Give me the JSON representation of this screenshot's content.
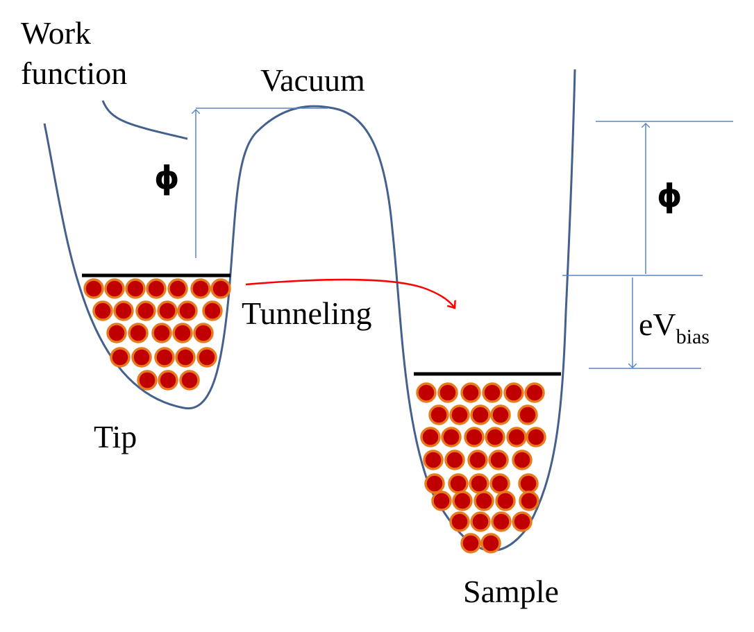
{
  "labels": {
    "work_function_line1": "Work",
    "work_function_line2": "function",
    "vacuum": "Vacuum",
    "phi_left": "ϕ",
    "phi_right": "ϕ",
    "tunneling": "Tunneling",
    "tip": "Tip",
    "sample": "Sample",
    "ev": "eV",
    "ev_sub": "bias"
  },
  "colors": {
    "well_curve": "#44608c",
    "dimension_lines": "#5a86c4",
    "fermi_level": "#000000",
    "electron_fill": "#c00000",
    "electron_stroke": "#e87a1e",
    "tunneling_arrow": "#ff0000"
  },
  "icons": {
    "electron": "filled-circle",
    "tunneling_arrow": "curved-arrow-right"
  }
}
